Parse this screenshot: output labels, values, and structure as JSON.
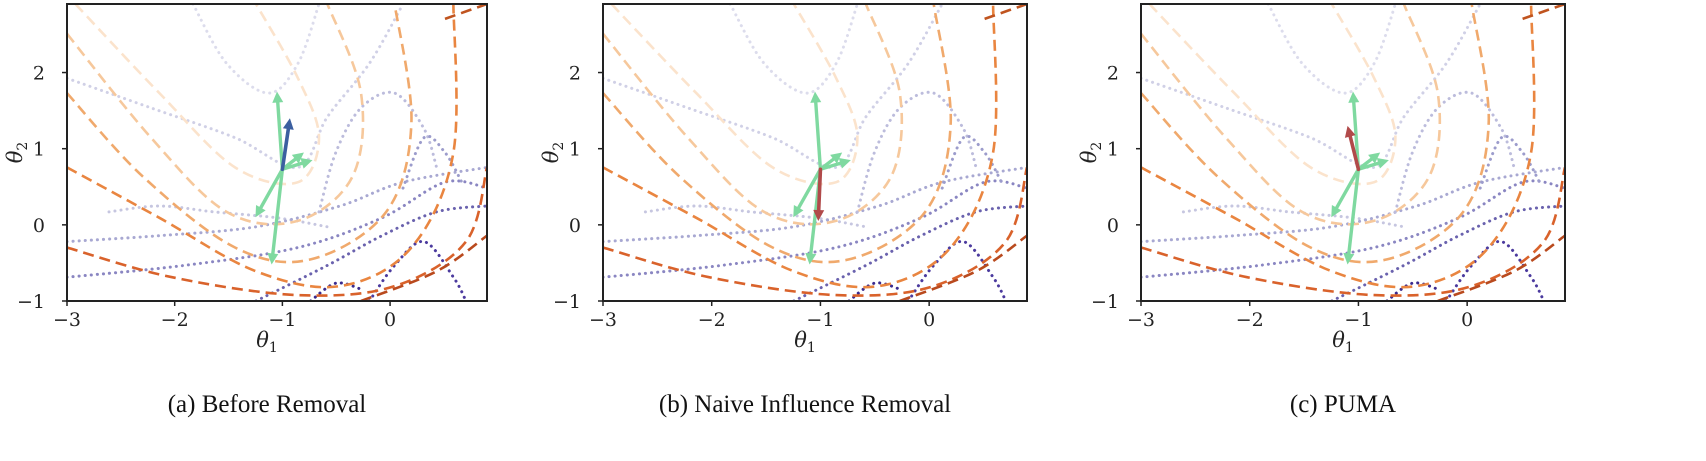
{
  "chart_data": [
    {
      "type": "contour",
      "caption": "(a) Before Removal",
      "xlabel": "θ1",
      "ylabel": "θ2",
      "xlim": [
        -3,
        0.9
      ],
      "ylim": [
        -1,
        2.9
      ],
      "xticks": [
        -3,
        -2,
        -1,
        0
      ],
      "yticks": [
        -1,
        0,
        1,
        2
      ],
      "xtick_labels": [
        "−3",
        "−2",
        "−1",
        "0"
      ],
      "ytick_labels": [
        "−1",
        "0",
        "1",
        "2"
      ],
      "origin": [
        -1.0,
        0.73
      ],
      "green_vectors": [
        [
          -1.05,
          1.75
        ],
        [
          -1.25,
          0.1
        ],
        [
          -1.1,
          -0.52
        ],
        [
          -0.8,
          0.95
        ],
        [
          -0.72,
          0.85
        ]
      ],
      "combined_vector": {
        "tip": [
          -0.93,
          1.4
        ],
        "color": "#3b5fa0"
      },
      "colors": {
        "green": "#7fd9a0",
        "dashed": "#d9622b",
        "dotted": "#4b3a9e"
      }
    },
    {
      "type": "contour",
      "caption": "(b) Naive Influence Removal",
      "xlabel": "θ1",
      "ylabel": "θ2",
      "xlim": [
        -3,
        0.9
      ],
      "ylim": [
        -1,
        2.9
      ],
      "xticks": [
        -3,
        -2,
        -1,
        0
      ],
      "yticks": [
        -1,
        0,
        1,
        2
      ],
      "xtick_labels": [
        "−3",
        "−2",
        "−1",
        "0"
      ],
      "ytick_labels": [
        "−1",
        "0",
        "1",
        "2"
      ],
      "origin": [
        -1.0,
        0.73
      ],
      "green_vectors": [
        [
          -1.05,
          1.75
        ],
        [
          -1.25,
          0.1
        ],
        [
          -1.1,
          -0.52
        ],
        [
          -0.8,
          0.95
        ],
        [
          -0.72,
          0.85
        ]
      ],
      "combined_vector": {
        "tip": [
          -1.02,
          0.05
        ],
        "color": "#b14a4a"
      },
      "colors": {
        "green": "#7fd9a0",
        "dashed": "#d9622b",
        "dotted": "#4b3a9e"
      }
    },
    {
      "type": "contour",
      "caption": "(c) PUMA",
      "xlabel": "θ1",
      "ylabel": "θ2",
      "xlim": [
        -3,
        0.9
      ],
      "ylim": [
        -1,
        2.9
      ],
      "xticks": [
        -3,
        -2,
        -1,
        0
      ],
      "yticks": [
        -1,
        0,
        1,
        2
      ],
      "xtick_labels": [
        "−3",
        "−2",
        "−1",
        "0"
      ],
      "ytick_labels": [
        "−1",
        "0",
        "1",
        "2"
      ],
      "origin": [
        -1.0,
        0.73
      ],
      "green_vectors": [
        [
          -1.05,
          1.75
        ],
        [
          -1.25,
          0.1
        ],
        [
          -1.1,
          -0.52
        ],
        [
          -0.8,
          0.95
        ],
        [
          -0.72,
          0.85
        ]
      ],
      "combined_vector": {
        "tip": [
          -1.1,
          1.3
        ],
        "color": "#b14a4a"
      },
      "colors": {
        "green": "#7fd9a0",
        "dashed": "#d9622b",
        "dotted": "#4b3a9e"
      }
    }
  ]
}
